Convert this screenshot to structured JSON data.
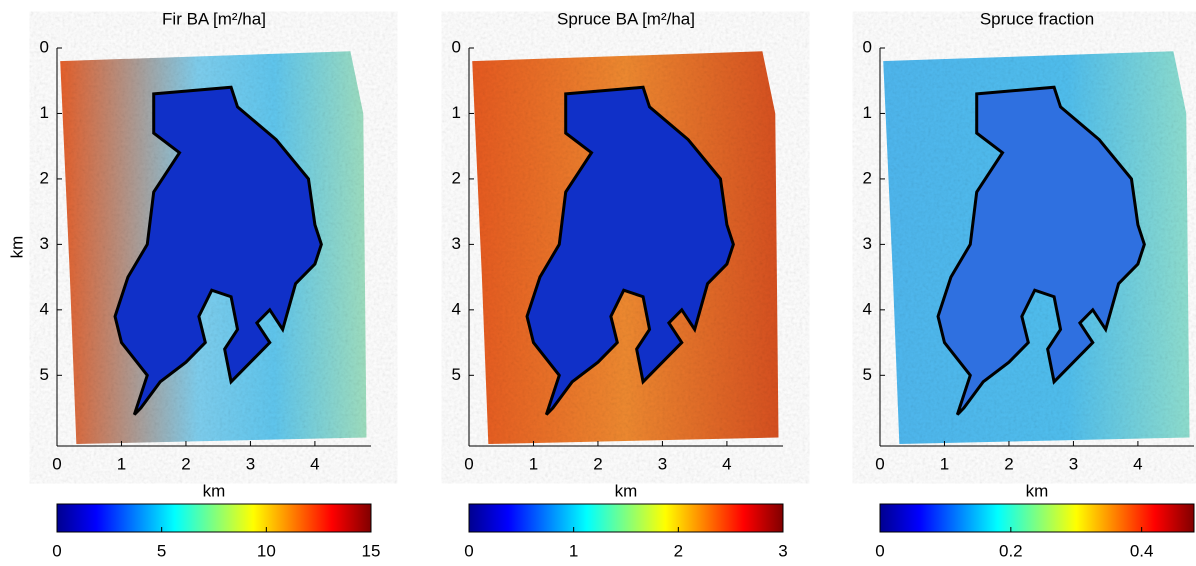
{
  "chart_data": [
    {
      "type": "heatmap",
      "title": "Fir  BA [m²/ha]",
      "xlabel": "km",
      "ylabel": "km",
      "xlim": [
        0,
        4.87
      ],
      "ylim": [
        0,
        6.08
      ],
      "xticks": [
        0,
        1,
        2,
        3,
        4
      ],
      "yticks": [
        0,
        1,
        2,
        3,
        4,
        5
      ],
      "colormap": "jet",
      "clim": [
        0,
        15
      ],
      "cticks": [
        0,
        5,
        10,
        15
      ]
    },
    {
      "type": "heatmap",
      "title": "Spruce BA [m²/ha]",
      "xlabel": "km",
      "xlim": [
        0,
        4.87
      ],
      "ylim": [
        0,
        6.08
      ],
      "xticks": [
        0,
        1,
        2,
        3,
        4
      ],
      "yticks": [
        0,
        1,
        2,
        3,
        4,
        5
      ],
      "colormap": "jet",
      "clim": [
        0,
        3
      ],
      "cticks": [
        0,
        1,
        2,
        3
      ]
    },
    {
      "type": "heatmap",
      "title": "Spruce fraction",
      "xlabel": "km",
      "xlim": [
        0,
        4.87
      ],
      "ylim": [
        0,
        6.08
      ],
      "xticks": [
        0,
        1,
        2,
        3,
        4
      ],
      "yticks": [
        0,
        1,
        2,
        3,
        4,
        5
      ],
      "colormap": "jet",
      "clim": [
        0,
        0.48
      ],
      "cticks": [
        0,
        0.2,
        0.4
      ]
    }
  ]
}
